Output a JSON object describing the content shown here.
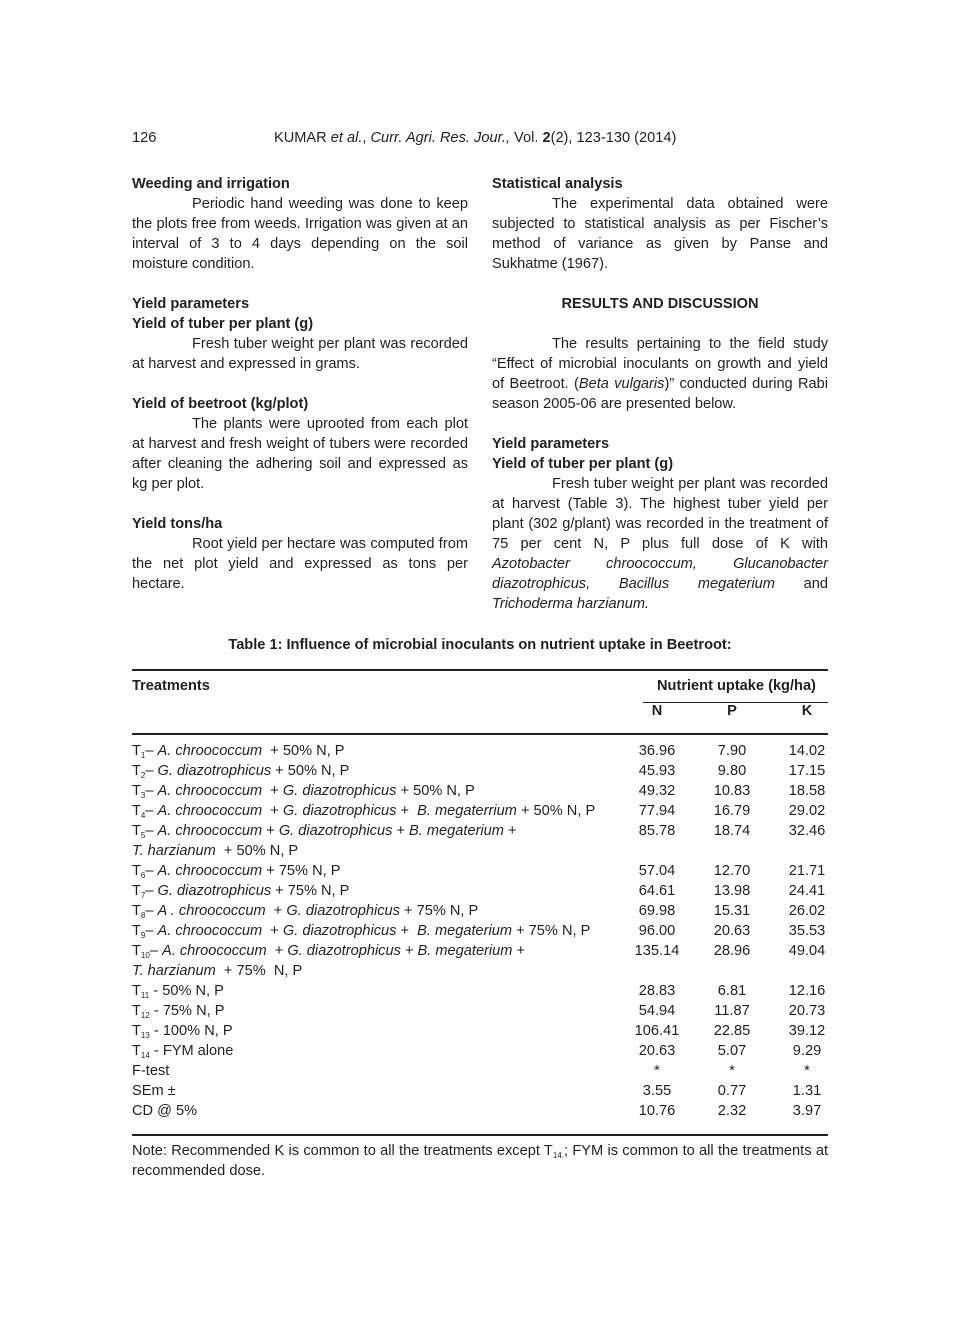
{
  "header": {
    "page_number": "126",
    "running_head": {
      "author": "KUMAR ",
      "etal": "et al.",
      "sep": ", ",
      "journal": "Curr. Agri. Res. Jour.,",
      "vol_prefix": " Vol. ",
      "vol": "2",
      "rest": "(2), 123-130 (2014)"
    }
  },
  "left": {
    "h1": "Weeding and irrigation",
    "p1": "Periodic hand weeding was done to keep the plots free from weeds. Irrigation was given at an interval of 3 to 4 days depending on the soil moisture condition.",
    "h2": "Yield parameters",
    "h3": "Yield of tuber per plant (g)",
    "p2": "Fresh tuber weight per plant was recorded at harvest and expressed in grams.",
    "h4": "Yield of beetroot (kg/plot)",
    "p3": "The plants were uprooted from each plot at harvest and fresh weight of tubers were recorded after cleaning the adhering soil and expressed as kg per plot.",
    "h5": "Yield tons/ha",
    "p4": "Root yield per hectare was computed from the net plot yield and expressed as tons per hectare."
  },
  "right": {
    "h1": "Statistical analysis",
    "p1": "The experimental data obtained were subjected to statistical analysis as per Fischer’s method of variance as given by Panse and Sukhatme (1967).",
    "h2": "RESULTS AND DISCUSSION",
    "p2a": "The results pertaining to the field study “Effect of microbial inoculants on growth and yield of Beetroot. (",
    "p2i": "Beta vulgaris",
    "p2b": ")” conducted during Rabi season 2005-06 are presented below.",
    "h3": "Yield parameters",
    "h4": "Yield of tuber per plant (g)",
    "p3a": "Fresh tuber weight per plant was recorded at harvest (Table 3). The highest tuber yield per plant (302 g/plant) was recorded in the treatment of 75 per cent N, P plus full dose of K with ",
    "p3i1": "Azotobacter chroococcum, Glucanobacter diazotrophicus, Bacillus megaterium",
    "p3b": " and ",
    "p3i2": "Trichoderma harzianum."
  },
  "table": {
    "title": "Table 1:  Influence of microbial inoculants on nutrient uptake in Beetroot:",
    "col_treatments": "Treatments",
    "col_group": "Nutrient uptake (kg/ha)",
    "cols": [
      "N",
      "P",
      "K"
    ],
    "rows": [
      {
        "sub": "1",
        "sep": "– ",
        "parts": [
          [
            "A. chroococcum",
            1
          ],
          [
            "  + 50% N, P",
            0
          ]
        ],
        "N": "36.96",
        "P": "7.90",
        "K": "14.02"
      },
      {
        "sub": "2",
        "sep": "– ",
        "parts": [
          [
            "G. diazotrophicus",
            1
          ],
          [
            " + 50% N, P",
            0
          ]
        ],
        "N": "45.93",
        "P": "9.80",
        "K": "17.15"
      },
      {
        "sub": "3",
        "sep": "– ",
        "parts": [
          [
            "A. chroococcum",
            1
          ],
          [
            "  + ",
            0
          ],
          [
            "G. diazotrophicus",
            1
          ],
          [
            " + 50% N, P",
            0
          ]
        ],
        "N": "49.32",
        "P": "10.83",
        "K": "18.58"
      },
      {
        "sub": "4",
        "sep": "– ",
        "parts": [
          [
            "A. chroococcum",
            1
          ],
          [
            "  + ",
            0
          ],
          [
            "G. diazotrophicus",
            1
          ],
          [
            " +  ",
            0
          ],
          [
            "B. megaterrium",
            1
          ],
          [
            " + 50% N, P",
            0
          ]
        ],
        "N": "77.94",
        "P": "16.79",
        "K": "29.02"
      },
      {
        "sub": "5",
        "sep": "– ",
        "parts": [
          [
            "A. chroococcum",
            1
          ],
          [
            " + ",
            0
          ],
          [
            "G. diazotrophicus",
            1
          ],
          [
            " + ",
            0
          ],
          [
            "B. megaterium",
            1
          ],
          [
            " +",
            0
          ]
        ],
        "line2": [
          [
            "T. harzianum",
            1
          ],
          [
            "  + 50% N, P",
            0
          ]
        ],
        "N": "85.78",
        "P": "18.74",
        "K": "32.46"
      },
      {
        "sub": "6",
        "sep": "– ",
        "parts": [
          [
            "A. chroococcum",
            1
          ],
          [
            " + 75% N, P",
            0
          ]
        ],
        "N": "57.04",
        "P": "12.70",
        "K": "21.71"
      },
      {
        "sub": "7",
        "sep": "– ",
        "parts": [
          [
            "G. diazotrophicus",
            1
          ],
          [
            " + 75% N, P",
            0
          ]
        ],
        "N": "64.61",
        "P": "13.98",
        "K": "24.41"
      },
      {
        "sub": "8",
        "sep": "– ",
        "parts": [
          [
            "A . chroococcum",
            1
          ],
          [
            "  + ",
            0
          ],
          [
            "G. diazotrophicus",
            1
          ],
          [
            " + 75% N, P",
            0
          ]
        ],
        "N": "69.98",
        "P": "15.31",
        "K": "26.02"
      },
      {
        "sub": "9",
        "sep": "– ",
        "parts": [
          [
            "A. chroococcum",
            1
          ],
          [
            "  + ",
            0
          ],
          [
            "G. diazotrophicus",
            1
          ],
          [
            " +  ",
            0
          ],
          [
            "B. megaterium",
            1
          ],
          [
            " + 75% N, P",
            0
          ]
        ],
        "N": "96.00",
        "P": "20.63",
        "K": "35.53"
      },
      {
        "sub": "10",
        "sep": "– ",
        "parts": [
          [
            "A. chroococcum",
            1
          ],
          [
            "  + ",
            0
          ],
          [
            "G. diazotrophicus",
            1
          ],
          [
            " + ",
            0
          ],
          [
            "B. megaterium",
            1
          ],
          [
            " +",
            0
          ]
        ],
        "line2": [
          [
            "T. harzianum",
            1
          ],
          [
            "  + 75%  N, P",
            0
          ]
        ],
        "N": "135.14",
        "P": "28.96",
        "K": "49.04"
      },
      {
        "sub": "11",
        "sep": " - ",
        "parts": [
          [
            "50% N, P",
            0
          ]
        ],
        "N": "28.83",
        "P": "6.81",
        "K": "12.16"
      },
      {
        "sub": "12",
        "sep": " - ",
        "parts": [
          [
            "75% N, P",
            0
          ]
        ],
        "N": "54.94",
        "P": "11.87",
        "K": "20.73"
      },
      {
        "sub": "13",
        "sep": " - ",
        "parts": [
          [
            "100% N, P",
            0
          ]
        ],
        "N": "106.41",
        "P": "22.85",
        "K": "39.12"
      },
      {
        "sub": "14",
        "sep": " - ",
        "parts": [
          [
            "FYM alone",
            0
          ]
        ],
        "N": "20.63",
        "P": "5.07",
        "K": "9.29"
      }
    ],
    "stats": [
      {
        "label": "F-test",
        "N": "*",
        "P": "*",
        "K": "*"
      },
      {
        "label": "SEm ±",
        "N": "3.55",
        "P": "0.77",
        "K": "1.31"
      },
      {
        "label": "CD @ 5%",
        "N": "10.76",
        "P": "2.32",
        "K": "3.97"
      }
    ],
    "note_a": "Note:  Recommended K is common to all the treatments except T",
    "note_sub": "14.",
    "note_b": "; FYM is common to all the treatments at recommended dose."
  }
}
